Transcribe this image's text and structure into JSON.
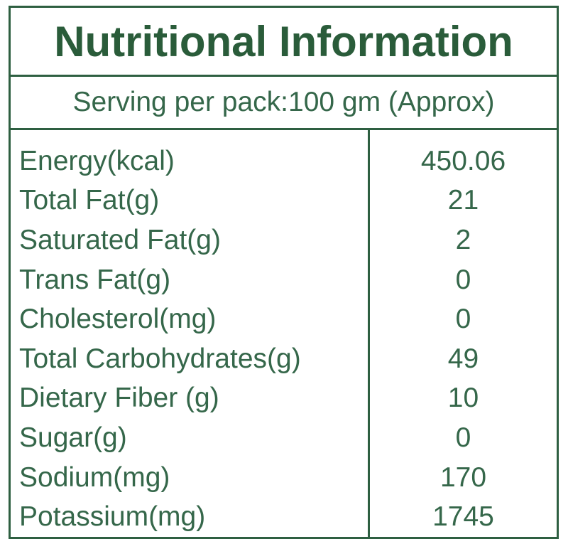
{
  "title": "Nutritional Information",
  "serving_info": "Serving per pack:100 gm (Approx)",
  "colors": {
    "border_green": "#2e5f41",
    "title_green": "#2a5c3a",
    "text_green": "#35674a",
    "background": "#ffffff"
  },
  "table": {
    "rows": [
      {
        "label": "Energy(kcal)",
        "value": "450.06"
      },
      {
        "label": "Total Fat(g)",
        "value": "21"
      },
      {
        "label": "Saturated Fat(g)",
        "value": "2"
      },
      {
        "label": "Trans Fat(g)",
        "value": "0"
      },
      {
        "label": "Cholesterol(mg)",
        "value": "0"
      },
      {
        "label": "Total Carbohydrates(g)",
        "value": "49"
      },
      {
        "label": "Dietary Fiber (g)",
        "value": "10"
      },
      {
        "label": "Sugar(g)",
        "value": "0"
      },
      {
        "label": "Sodium(mg)",
        "value": "170"
      },
      {
        "label": "Potassium(mg)",
        "value": "1745"
      }
    ]
  }
}
